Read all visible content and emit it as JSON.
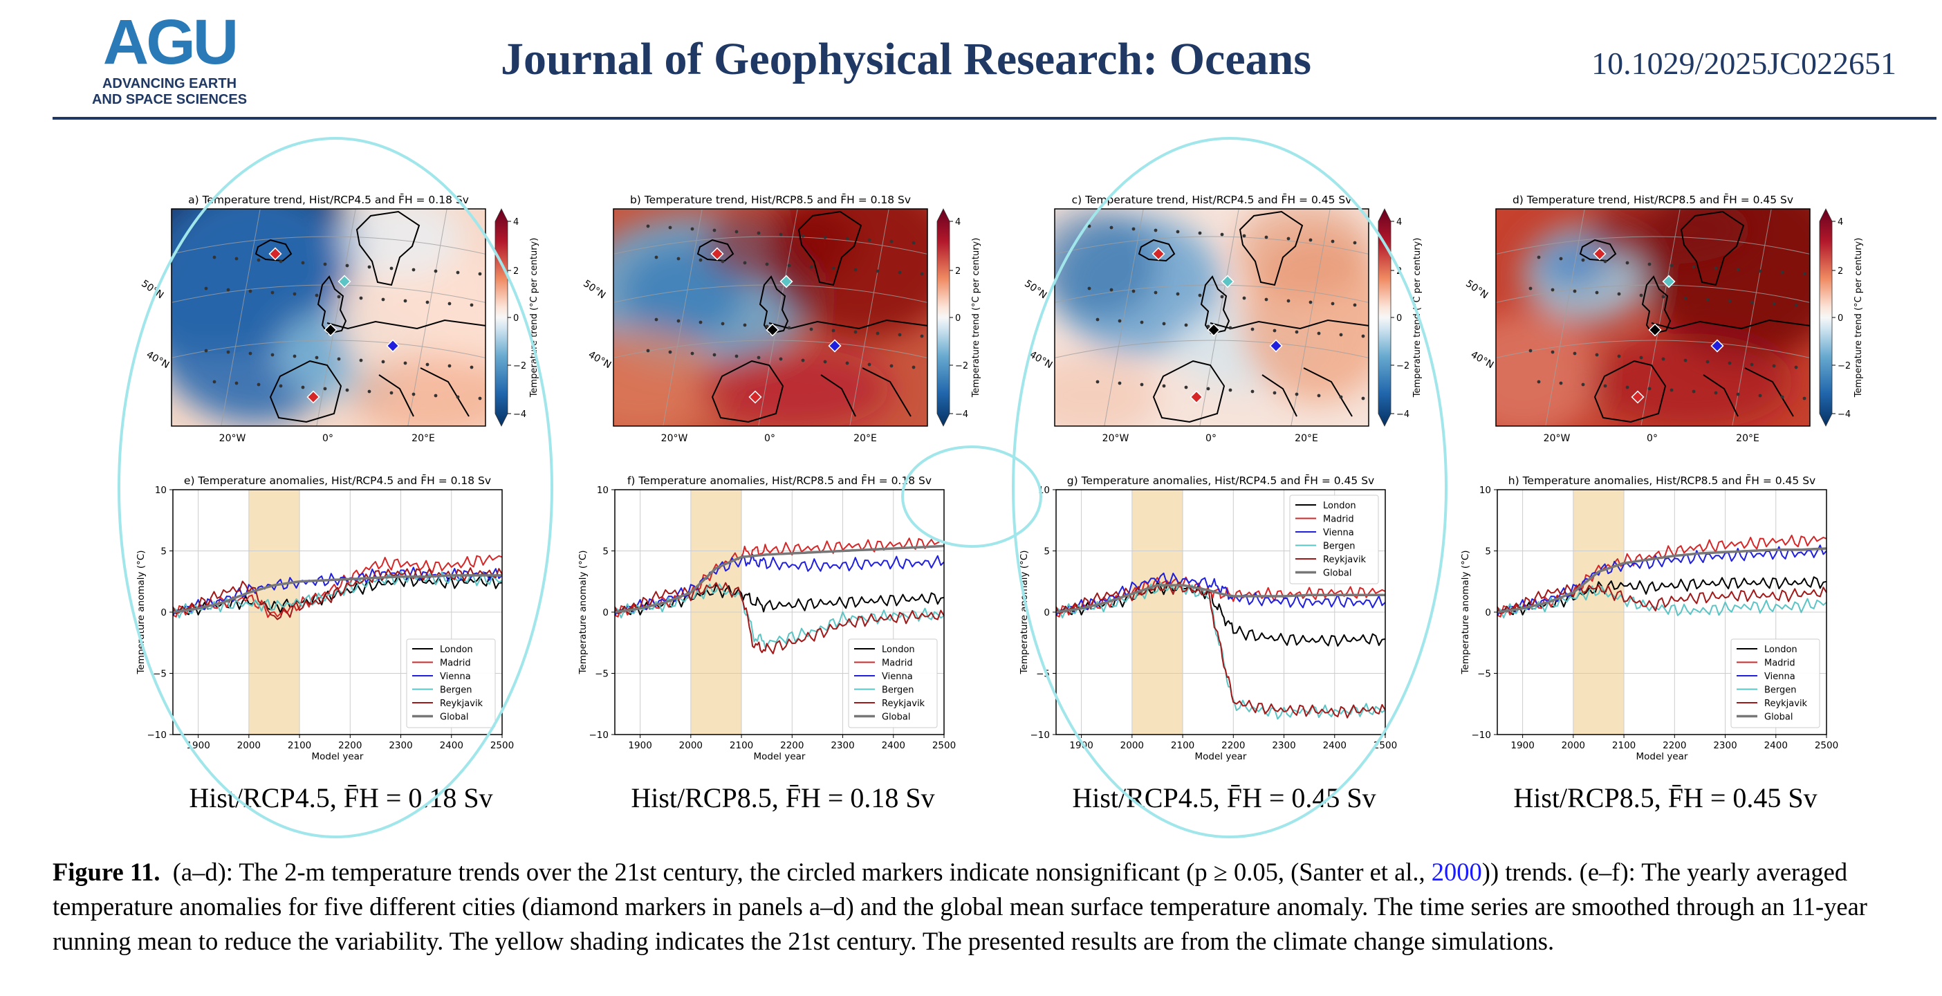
{
  "header": {
    "logo_text": "AGU",
    "logo_sub1": "ADVANCING EARTH",
    "logo_sub2": "AND SPACE SCIENCES",
    "journal": "Journal of Geophysical Research: Oceans",
    "doi": "10.1029/2025JC022651"
  },
  "colors": {
    "journal_blue": "#1f3864",
    "logo_blue": "#2a7ab8",
    "highlight_cyan": "#a0e6ea",
    "shading_21st_century": "#f5deb3"
  },
  "maps": [
    {
      "title": "a) Temperature trend, Hist/RCP4.5 and F̄H = 0.18 Sv",
      "colorbar_label": "Temperature trend (°C per century)",
      "scheme": "cold"
    },
    {
      "title": "b) Temperature trend, Hist/RCP8.5 and F̄H = 0.18 Sv",
      "colorbar_label": "Temperature trend (°C per century)",
      "scheme": "warm"
    },
    {
      "title": "c) Temperature trend, Hist/RCP4.5 and F̄H = 0.45 Sv",
      "colorbar_label": "Temperature trend (°C per century)",
      "scheme": "mild"
    },
    {
      "title": "d) Temperature trend, Hist/RCP8.5 and F̄H = 0.45 Sv",
      "colorbar_label": "Temperature trend (°C per century)",
      "scheme": "hot"
    }
  ],
  "map_axes": {
    "lon_ticks": [
      "20°W",
      "0°",
      "20°E"
    ],
    "lat_ticks": [
      "50°N",
      "40°N"
    ],
    "colorbar_ticks": [
      "4",
      "2",
      "0",
      "−2",
      "−4"
    ]
  },
  "legend_entries": [
    "London",
    "Madrid",
    "Vienna",
    "Bergen",
    "Reykjavik",
    "Global"
  ],
  "series_colors": {
    "London": "#000000",
    "Madrid": "#d62728",
    "Vienna": "#1f1fdd",
    "Bergen": "#5cc4c4",
    "Reykjavik": "#a01818",
    "Global": "#777777"
  },
  "panel_labels": [
    "Hist/RCP4.5, F̄H = 0.18 Sv",
    "Hist/RCP8.5, F̄H = 0.18 Sv",
    "Hist/RCP4.5, F̄H = 0.45 Sv",
    "Hist/RCP8.5, F̄H = 0.45 Sv"
  ],
  "chart_data": [
    {
      "type": "line",
      "title": "e) Temperature anomalies, Hist/RCP4.5 and F̄H = 0.18 Sv",
      "xlabel": "Model year",
      "ylabel": "Temperature anomaly (°C)",
      "xlim": [
        1850,
        2500
      ],
      "ylim": [
        -10,
        10
      ],
      "xticks": [
        1900,
        2000,
        2100,
        2200,
        2300,
        2400,
        2500
      ],
      "yticks": [
        10,
        5,
        0,
        -5,
        -10
      ],
      "shaded_x": [
        2000,
        2100
      ],
      "grid": true,
      "legend": "lower right",
      "x": [
        1850,
        1900,
        1950,
        2000,
        2050,
        2100,
        2150,
        2200,
        2250,
        2300,
        2350,
        2400,
        2450,
        2500
      ],
      "series": [
        {
          "name": "London",
          "values": [
            0,
            0.3,
            0.6,
            0.9,
            0.4,
            0.8,
            1.2,
            1.8,
            2.2,
            2.6,
            2.5,
            2.4,
            2.6,
            2.4
          ]
        },
        {
          "name": "Madrid",
          "values": [
            0,
            0.4,
            0.8,
            1.2,
            -0.3,
            0.6,
            1.5,
            2.8,
            3.9,
            4.0,
            3.7,
            3.8,
            4.2,
            4.5
          ]
        },
        {
          "name": "Vienna",
          "values": [
            0,
            0.5,
            1.0,
            1.8,
            2.2,
            2.4,
            2.6,
            2.7,
            3.0,
            3.2,
            3.0,
            3.0,
            3.1,
            3.0
          ]
        },
        {
          "name": "Bergen",
          "values": [
            0,
            0.3,
            0.6,
            0.7,
            0.5,
            0.8,
            1.2,
            2.0,
            2.6,
            2.8,
            2.8,
            2.7,
            2.7,
            2.6
          ]
        },
        {
          "name": "Reykjavik",
          "values": [
            0,
            0.6,
            1.6,
            2.2,
            -0.5,
            0.5,
            1.0,
            2.2,
            3.0,
            3.2,
            3.1,
            3.0,
            3.2,
            3.1
          ]
        },
        {
          "name": "Global",
          "values": [
            0,
            0.3,
            0.8,
            1.6,
            2.2,
            2.5,
            2.6,
            2.7,
            2.8,
            2.9,
            2.9,
            3.0,
            3.0,
            3.0
          ]
        }
      ]
    },
    {
      "type": "line",
      "title": "f) Temperature anomalies, Hist/RCP8.5 and F̄H = 0.18 Sv",
      "xlabel": "Model year",
      "ylabel": "Temperature anomaly (°C)",
      "xlim": [
        1850,
        2500
      ],
      "ylim": [
        -10,
        10
      ],
      "xticks": [
        1900,
        2000,
        2100,
        2200,
        2300,
        2400,
        2500
      ],
      "yticks": [
        10,
        5,
        0,
        -5,
        -10
      ],
      "shaded_x": [
        2000,
        2100
      ],
      "grid": true,
      "legend": "lower right",
      "x": [
        1850,
        1900,
        1950,
        2000,
        2050,
        2100,
        2125,
        2150,
        2200,
        2250,
        2300,
        2350,
        2400,
        2450,
        2500
      ],
      "series": [
        {
          "name": "London",
          "values": [
            0,
            0.3,
            0.6,
            1.2,
            1.8,
            1.6,
            0.8,
            0.5,
            0.6,
            0.7,
            0.8,
            0.9,
            1.0,
            1.1,
            1.2
          ]
        },
        {
          "name": "Madrid",
          "values": [
            0,
            0.4,
            0.8,
            1.5,
            3.6,
            4.8,
            5.0,
            5.0,
            5.2,
            5.2,
            5.4,
            5.4,
            5.5,
            5.6,
            5.7
          ]
        },
        {
          "name": "Vienna",
          "values": [
            0,
            0.5,
            1.0,
            1.8,
            3.5,
            4.2,
            4.2,
            4.0,
            3.8,
            3.8,
            3.8,
            4.0,
            4.0,
            4.0,
            4.1
          ]
        },
        {
          "name": "Bergen",
          "values": [
            0,
            0.3,
            0.6,
            1.2,
            2.0,
            1.2,
            -2.0,
            -2.5,
            -2.0,
            -1.5,
            -0.5,
            -0.5,
            -0.3,
            -0.2,
            -0.3
          ]
        },
        {
          "name": "Reykjavik",
          "values": [
            0,
            0.6,
            1.6,
            1.5,
            2.2,
            1.5,
            -2.8,
            -3.0,
            -2.5,
            -1.8,
            -1.0,
            -0.6,
            -0.5,
            -0.3,
            -0.3
          ]
        },
        {
          "name": "Global",
          "values": [
            0,
            0.3,
            0.8,
            1.6,
            3.6,
            4.5,
            4.6,
            4.7,
            4.8,
            4.9,
            5.0,
            5.1,
            5.2,
            5.3,
            5.4
          ]
        }
      ]
    },
    {
      "type": "line",
      "title": "g) Temperature anomalies, Hist/RCP4.5 and F̄H = 0.45 Sv",
      "xlabel": "Model year",
      "ylabel": "Temperature anomaly (°C)",
      "xlim": [
        1850,
        2500
      ],
      "ylim": [
        -10,
        10
      ],
      "xticks": [
        1900,
        2000,
        2100,
        2200,
        2300,
        2400,
        2500
      ],
      "yticks": [
        10,
        5,
        0,
        -5,
        -10
      ],
      "shaded_x": [
        2000,
        2100
      ],
      "grid": true,
      "legend": "upper right",
      "x": [
        1850,
        1900,
        1950,
        2000,
        2050,
        2100,
        2150,
        2175,
        2200,
        2250,
        2300,
        2350,
        2400,
        2450,
        2500
      ],
      "series": [
        {
          "name": "London",
          "values": [
            0,
            0.3,
            0.6,
            1.2,
            2.0,
            2.0,
            1.6,
            0.0,
            -1.5,
            -2.0,
            -2.2,
            -2.3,
            -2.3,
            -2.2,
            -2.2
          ]
        },
        {
          "name": "Madrid",
          "values": [
            0,
            0.4,
            0.8,
            1.5,
            2.5,
            2.4,
            1.8,
            1.5,
            1.4,
            1.5,
            1.4,
            1.5,
            1.6,
            1.6,
            1.7
          ]
        },
        {
          "name": "Vienna",
          "values": [
            0,
            0.5,
            1.0,
            2.0,
            2.8,
            2.6,
            2.4,
            2.0,
            1.2,
            1.0,
            0.9,
            0.8,
            0.9,
            0.8,
            0.8
          ]
        },
        {
          "name": "Bergen",
          "values": [
            0,
            0.3,
            0.6,
            1.2,
            2.0,
            2.0,
            1.4,
            -3.0,
            -7.5,
            -8.0,
            -8.3,
            -8.0,
            -8.2,
            -8.0,
            -8.0
          ]
        },
        {
          "name": "Reykjavik",
          "values": [
            0,
            0.6,
            1.4,
            1.5,
            2.0,
            2.0,
            1.5,
            -3.0,
            -7.3,
            -7.8,
            -8.0,
            -8.0,
            -8.2,
            -8.0,
            -8.0
          ]
        },
        {
          "name": "Global",
          "values": [
            0,
            0.3,
            0.8,
            1.5,
            2.2,
            2.2,
            1.8,
            1.5,
            1.3,
            1.3,
            1.3,
            1.4,
            1.4,
            1.4,
            1.4
          ]
        }
      ]
    },
    {
      "type": "line",
      "title": "h) Temperature anomalies, Hist/RCP8.5 and F̄H = 0.45 Sv",
      "xlabel": "Model year",
      "ylabel": "Temperature anomaly (°C)",
      "xlim": [
        1850,
        2500
      ],
      "ylim": [
        -10,
        10
      ],
      "xticks": [
        1900,
        2000,
        2100,
        2200,
        2300,
        2400,
        2500
      ],
      "yticks": [
        10,
        5,
        0,
        -5,
        -10
      ],
      "shaded_x": [
        2000,
        2100
      ],
      "grid": true,
      "legend": "lower right",
      "x": [
        1850,
        1900,
        1950,
        2000,
        2050,
        2100,
        2150,
        2200,
        2250,
        2300,
        2350,
        2400,
        2450,
        2500
      ],
      "series": [
        {
          "name": "London",
          "values": [
            0,
            0.3,
            0.6,
            1.2,
            2.0,
            2.2,
            2.0,
            2.2,
            2.3,
            2.4,
            2.4,
            2.4,
            2.4,
            2.5
          ]
        },
        {
          "name": "Madrid",
          "values": [
            0,
            0.4,
            0.8,
            1.6,
            3.5,
            4.2,
            4.5,
            5.0,
            5.3,
            5.5,
            5.6,
            5.8,
            5.8,
            6.0
          ]
        },
        {
          "name": "Vienna",
          "values": [
            0,
            0.5,
            1.0,
            1.8,
            3.4,
            3.8,
            4.0,
            4.3,
            4.5,
            4.6,
            4.7,
            4.8,
            4.8,
            5.0
          ]
        },
        {
          "name": "Bergen",
          "values": [
            0,
            0.3,
            0.6,
            1.2,
            1.8,
            1.0,
            0.4,
            0.2,
            0.1,
            0.3,
            0.5,
            0.4,
            0.5,
            0.8
          ]
        },
        {
          "name": "Reykjavik",
          "values": [
            0,
            0.6,
            1.6,
            1.8,
            2.0,
            1.2,
            0.5,
            1.0,
            1.2,
            1.3,
            1.4,
            1.3,
            1.5,
            1.6
          ]
        },
        {
          "name": "Global",
          "values": [
            0,
            0.3,
            0.8,
            1.6,
            3.3,
            4.0,
            4.3,
            4.6,
            4.8,
            4.9,
            5.0,
            5.1,
            5.1,
            5.2
          ]
        }
      ]
    }
  ],
  "caption": {
    "label": "Figure 11.",
    "text_before_cite": "(a–d): The 2-m temperature trends over the 21st century, the circled markers indicate nonsignificant (p ≥ 0.05, (Santer et al., ",
    "cite_year": "2000",
    "text_after_cite": ")) trends. (e–f): The yearly averaged temperature anomalies for five different cities (diamond markers in panels a–d) and the global mean surface temperature anomaly. The time series are smoothed through an 11-year running mean to reduce the variability. The yellow shading indicates the 21st century. The presented results are from the climate change simulations."
  }
}
